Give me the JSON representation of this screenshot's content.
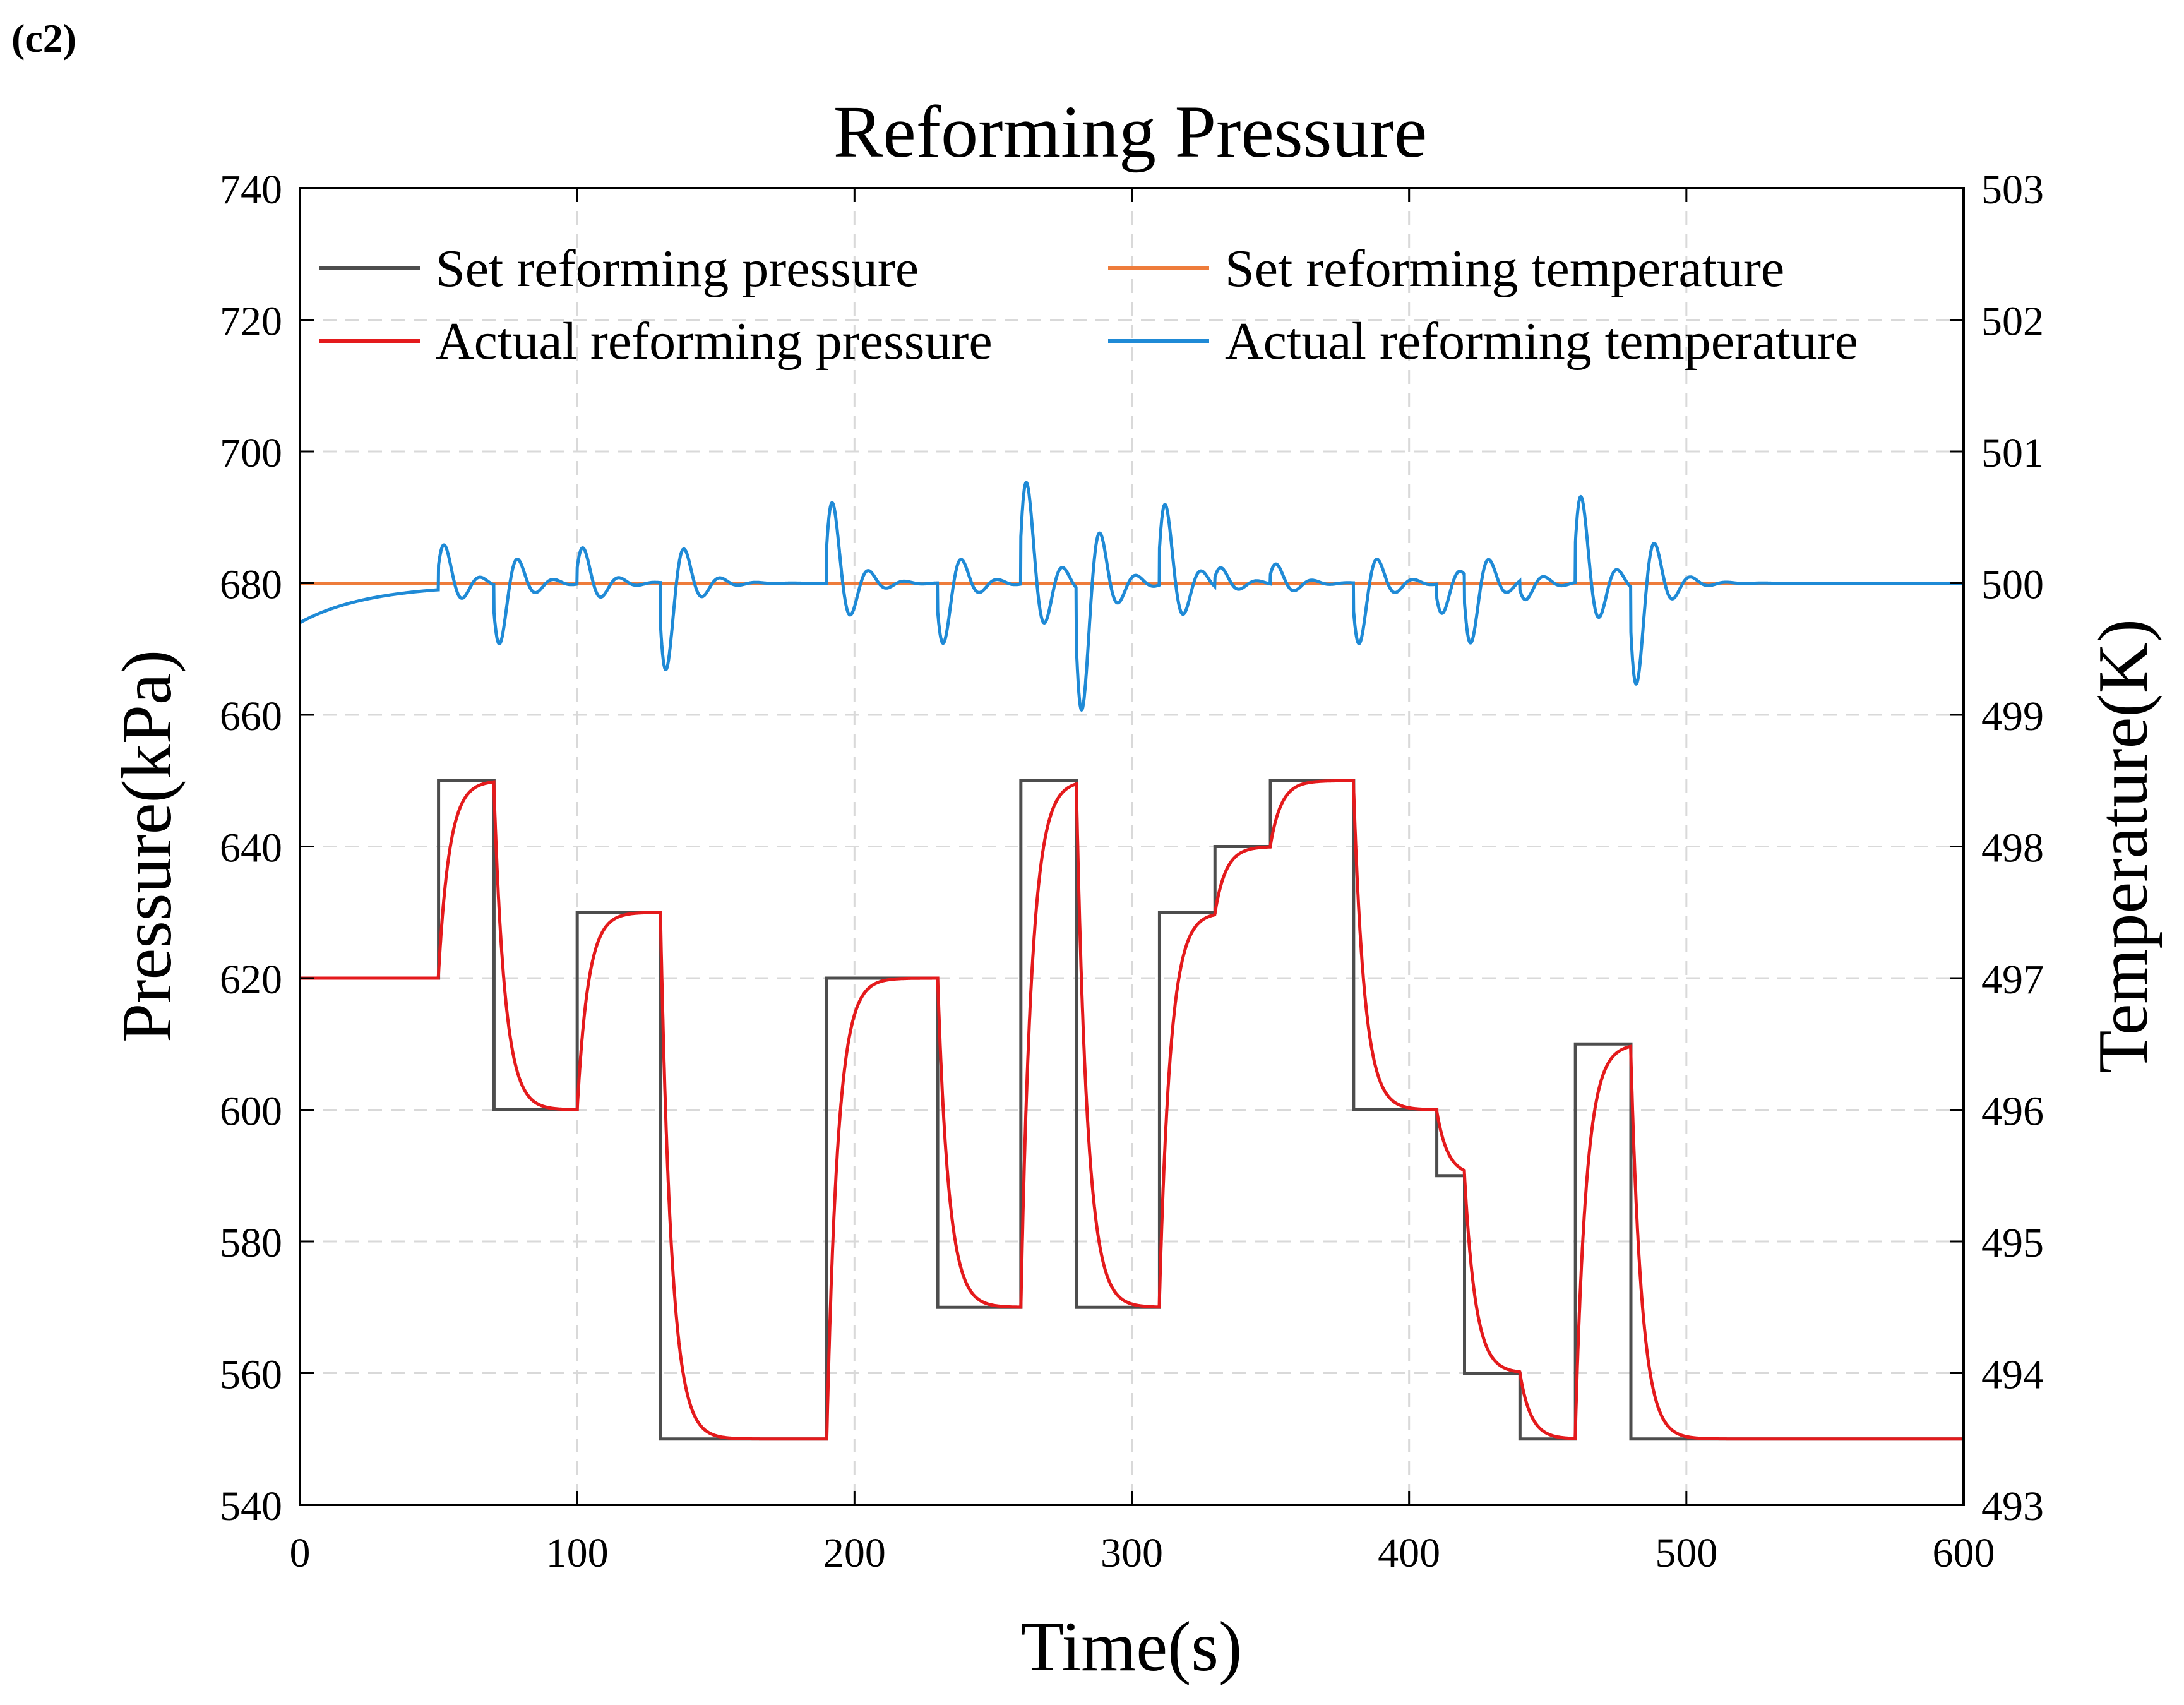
{
  "panel_label": "(c2)",
  "chart_data": {
    "type": "line",
    "title": "Reforming Pressure",
    "xlabel": "Time(s)",
    "ylabel": "Pressure(kPa)",
    "ylabel_right": "Temperature(K)",
    "xlim": [
      0,
      600
    ],
    "ylim": [
      540,
      740
    ],
    "ylim_right": [
      493,
      503
    ],
    "xticks": [
      0,
      100,
      200,
      300,
      400,
      500,
      600
    ],
    "yticks": [
      540,
      560,
      580,
      600,
      620,
      640,
      660,
      680,
      700,
      720,
      740
    ],
    "yticks_right": [
      493,
      494,
      495,
      496,
      497,
      498,
      499,
      500,
      501,
      502,
      503
    ],
    "grid": true,
    "legend": {
      "placement": "top",
      "entries": [
        {
          "label": "Set reforming pressure",
          "color": "#4d4d4d"
        },
        {
          "label": "Set reforming  temperature",
          "color": "#ee7c3b"
        },
        {
          "label": "Actual reforming pressure",
          "color": "#e41a1c"
        },
        {
          "label": "Actual reforming temperature",
          "color": "#1f8ad6"
        }
      ]
    },
    "series": [
      {
        "name": "Set reforming pressure",
        "axis": "left",
        "color": "#4d4d4d",
        "step_times": [
          0,
          50,
          70,
          100,
          130,
          190,
          230,
          260,
          280,
          310,
          330,
          350,
          380,
          410,
          420,
          440,
          460,
          480,
          600
        ],
        "step_values": [
          620,
          650,
          600,
          630,
          550,
          620,
          570,
          650,
          570,
          630,
          640,
          650,
          600,
          590,
          560,
          550,
          610,
          550,
          550
        ]
      },
      {
        "name": "Actual reforming pressure",
        "axis": "left",
        "color": "#e41a1c",
        "response": "first-order lag following set pressure, time constant about 4 s",
        "time_constant": 4
      },
      {
        "name": "Set reforming  temperature",
        "axis": "right",
        "color": "#ee7c3b",
        "x": [
          0,
          600
        ],
        "values": [
          500,
          500
        ]
      },
      {
        "name": "Actual reforming temperature",
        "axis": "right",
        "color": "#1f8ad6",
        "baseline": 500,
        "initial": 499.7,
        "disturbances": [
          {
            "t": 50,
            "amplitude": 0.38
          },
          {
            "t": 70,
            "amplitude": -0.58
          },
          {
            "t": 100,
            "amplitude": 0.35
          },
          {
            "t": 130,
            "amplitude": -0.86
          },
          {
            "t": 190,
            "amplitude": 0.8
          },
          {
            "t": 230,
            "amplitude": -0.6
          },
          {
            "t": 260,
            "amplitude": 1.0
          },
          {
            "t": 280,
            "amplitude": -1.2
          },
          {
            "t": 310,
            "amplitude": 0.78
          },
          {
            "t": 330,
            "amplitude": 0.2
          },
          {
            "t": 350,
            "amplitude": 0.2
          },
          {
            "t": 380,
            "amplitude": -0.6
          },
          {
            "t": 410,
            "amplitude": -0.3
          },
          {
            "t": 420,
            "amplitude": -0.6
          },
          {
            "t": 440,
            "amplitude": -0.2
          },
          {
            "t": 460,
            "amplitude": 0.85
          },
          {
            "t": 480,
            "amplitude": -0.95
          }
        ]
      }
    ]
  }
}
